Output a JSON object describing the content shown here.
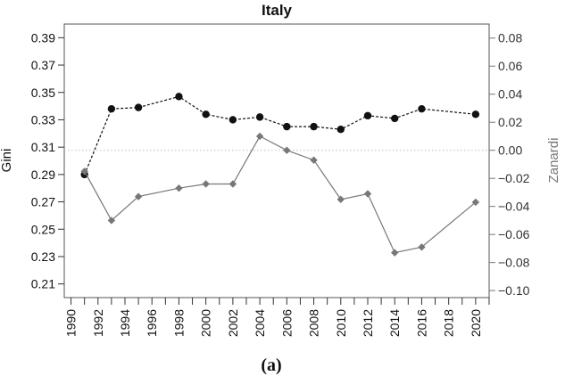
{
  "chart_data": {
    "type": "line",
    "title": "Italy",
    "caption": "(a)",
    "ylabel": "Gini",
    "y2label": "Zanardi",
    "ylim": [
      0.2,
      0.4
    ],
    "y2lim": [
      -0.105,
      0.09
    ],
    "y_ticks": [
      "0.21",
      "0.23",
      "0.25",
      "0.27",
      "0.29",
      "0.31",
      "0.33",
      "0.35",
      "0.37",
      "0.39"
    ],
    "y2_ticks": [
      "0.08",
      "0.06",
      "0.04",
      "0.02",
      "0.00",
      "−0.02",
      "−0.04",
      "−0.06",
      "−0.08",
      "−0.10"
    ],
    "x_ticks": [
      "1990",
      "1992",
      "1994",
      "1996",
      "1998",
      "2000",
      "2002",
      "2004",
      "2006",
      "2008",
      "2010",
      "2012",
      "2014",
      "2016",
      "2018",
      "2020"
    ],
    "xlim": [
      1989.5,
      2021
    ],
    "reference_line": {
      "axis": "y2",
      "value": 0.0,
      "style": "dotted",
      "color": "#bbbbbb"
    },
    "series": [
      {
        "axis": "y",
        "style": "dashed",
        "marker": "circle",
        "color": "#111111",
        "x": [
          1991,
          1993,
          1995,
          1998,
          2000,
          2002,
          2004,
          2006,
          2008,
          2010,
          2012,
          2014,
          2016,
          2020
        ],
        "values": [
          0.29,
          0.338,
          0.339,
          0.347,
          0.334,
          0.33,
          0.332,
          0.325,
          0.325,
          0.323,
          0.333,
          0.331,
          0.338,
          0.334
        ]
      },
      {
        "axis": "y2",
        "style": "solid",
        "marker": "diamond",
        "color": "#777777",
        "x": [
          1991,
          1993,
          1995,
          1998,
          2000,
          2002,
          2004,
          2006,
          2008,
          2010,
          2012,
          2014,
          2016,
          2020
        ],
        "values": [
          -0.015,
          -0.05,
          -0.033,
          -0.027,
          -0.024,
          -0.024,
          0.01,
          0.0,
          -0.007,
          -0.035,
          -0.031,
          -0.073,
          -0.069,
          -0.037
        ]
      }
    ]
  }
}
